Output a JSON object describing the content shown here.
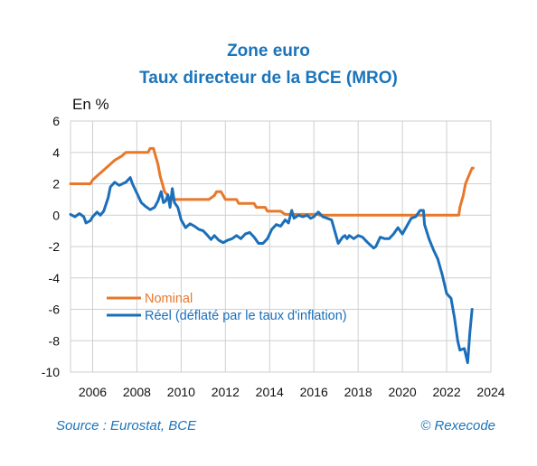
{
  "colors": {
    "title": "#1b74ba",
    "source": "#1b74ba",
    "nominal": "#e8782a",
    "reel": "#1b6fba",
    "grid": "#cfcfcf"
  },
  "header": {
    "line1": "Zone euro",
    "line2": "Taux directeur de la BCE (MRO)"
  },
  "footer": {
    "source": "Source : Eurostat, BCE",
    "copyright": "© Rexecode"
  },
  "chart_data": {
    "type": "line",
    "ylabel": "En %",
    "xlim": [
      2005.0,
      2024.0
    ],
    "ylim": [
      -10,
      6
    ],
    "xticks": [
      2006,
      2008,
      2010,
      2012,
      2014,
      2016,
      2018,
      2020,
      2022,
      2024
    ],
    "yticks": [
      6,
      4,
      2,
      0,
      -2,
      -4,
      -6,
      -8,
      -10
    ],
    "grid": true,
    "legend_position": "bottom-left",
    "series": [
      {
        "name": "Nominal",
        "color": "#e8782a",
        "points": [
          [
            2005.0,
            2.0
          ],
          [
            2005.9,
            2.0
          ],
          [
            2006.0,
            2.25
          ],
          [
            2006.2,
            2.5
          ],
          [
            2006.4,
            2.75
          ],
          [
            2006.6,
            3.0
          ],
          [
            2006.8,
            3.25
          ],
          [
            2007.0,
            3.5
          ],
          [
            2007.3,
            3.75
          ],
          [
            2007.5,
            4.0
          ],
          [
            2008.5,
            4.0
          ],
          [
            2008.6,
            4.25
          ],
          [
            2008.75,
            4.25
          ],
          [
            2008.85,
            3.75
          ],
          [
            2008.95,
            3.25
          ],
          [
            2009.05,
            2.5
          ],
          [
            2009.15,
            2.0
          ],
          [
            2009.25,
            1.5
          ],
          [
            2009.4,
            1.25
          ],
          [
            2009.5,
            1.0
          ],
          [
            2011.25,
            1.0
          ],
          [
            2011.5,
            1.25
          ],
          [
            2011.6,
            1.5
          ],
          [
            2011.8,
            1.5
          ],
          [
            2011.9,
            1.25
          ],
          [
            2012.0,
            1.0
          ],
          [
            2012.5,
            1.0
          ],
          [
            2012.6,
            0.75
          ],
          [
            2013.3,
            0.75
          ],
          [
            2013.4,
            0.5
          ],
          [
            2013.8,
            0.5
          ],
          [
            2013.9,
            0.25
          ],
          [
            2014.5,
            0.25
          ],
          [
            2014.6,
            0.15
          ],
          [
            2014.7,
            0.05
          ],
          [
            2016.2,
            0.05
          ],
          [
            2016.25,
            0.0
          ],
          [
            2022.55,
            0.0
          ],
          [
            2022.6,
            0.5
          ],
          [
            2022.75,
            1.25
          ],
          [
            2022.85,
            2.0
          ],
          [
            2023.0,
            2.5
          ],
          [
            2023.15,
            3.0
          ],
          [
            2023.2,
            3.0
          ]
        ]
      },
      {
        "name": "Réel (déflaté par le taux d'inflation)",
        "color": "#1b6fba",
        "points": [
          [
            2005.0,
            0.05
          ],
          [
            2005.2,
            -0.1
          ],
          [
            2005.4,
            0.1
          ],
          [
            2005.6,
            -0.1
          ],
          [
            2005.7,
            -0.5
          ],
          [
            2005.9,
            -0.35
          ],
          [
            2006.0,
            -0.1
          ],
          [
            2006.2,
            0.2
          ],
          [
            2006.35,
            0.0
          ],
          [
            2006.5,
            0.25
          ],
          [
            2006.7,
            1.1
          ],
          [
            2006.8,
            1.8
          ],
          [
            2007.0,
            2.1
          ],
          [
            2007.2,
            1.9
          ],
          [
            2007.5,
            2.1
          ],
          [
            2007.7,
            2.4
          ],
          [
            2007.8,
            2.0
          ],
          [
            2008.0,
            1.4
          ],
          [
            2008.2,
            0.8
          ],
          [
            2008.4,
            0.55
          ],
          [
            2008.6,
            0.35
          ],
          [
            2008.8,
            0.5
          ],
          [
            2008.95,
            0.9
          ],
          [
            2009.1,
            1.5
          ],
          [
            2009.2,
            0.8
          ],
          [
            2009.3,
            0.9
          ],
          [
            2009.4,
            1.3
          ],
          [
            2009.5,
            0.5
          ],
          [
            2009.6,
            1.7
          ],
          [
            2009.7,
            0.8
          ],
          [
            2009.85,
            0.5
          ],
          [
            2010.0,
            -0.3
          ],
          [
            2010.2,
            -0.8
          ],
          [
            2010.4,
            -0.55
          ],
          [
            2010.6,
            -0.7
          ],
          [
            2010.8,
            -0.9
          ],
          [
            2011.0,
            -1.0
          ],
          [
            2011.2,
            -1.3
          ],
          [
            2011.35,
            -1.55
          ],
          [
            2011.5,
            -1.3
          ],
          [
            2011.7,
            -1.6
          ],
          [
            2011.9,
            -1.75
          ],
          [
            2012.1,
            -1.6
          ],
          [
            2012.3,
            -1.5
          ],
          [
            2012.5,
            -1.3
          ],
          [
            2012.7,
            -1.5
          ],
          [
            2012.9,
            -1.2
          ],
          [
            2013.1,
            -1.1
          ],
          [
            2013.3,
            -1.4
          ],
          [
            2013.5,
            -1.8
          ],
          [
            2013.7,
            -1.8
          ],
          [
            2013.9,
            -1.5
          ],
          [
            2014.1,
            -0.9
          ],
          [
            2014.3,
            -0.6
          ],
          [
            2014.5,
            -0.7
          ],
          [
            2014.7,
            -0.3
          ],
          [
            2014.85,
            -0.5
          ],
          [
            2015.0,
            0.3
          ],
          [
            2015.1,
            -0.2
          ],
          [
            2015.3,
            0.0
          ],
          [
            2015.5,
            -0.1
          ],
          [
            2015.7,
            0.0
          ],
          [
            2015.85,
            -0.2
          ],
          [
            2016.0,
            -0.1
          ],
          [
            2016.2,
            0.2
          ],
          [
            2016.4,
            -0.1
          ],
          [
            2016.6,
            -0.2
          ],
          [
            2016.8,
            -0.3
          ],
          [
            2017.0,
            -1.3
          ],
          [
            2017.1,
            -1.8
          ],
          [
            2017.2,
            -1.6
          ],
          [
            2017.3,
            -1.4
          ],
          [
            2017.4,
            -1.3
          ],
          [
            2017.5,
            -1.5
          ],
          [
            2017.6,
            -1.3
          ],
          [
            2017.8,
            -1.5
          ],
          [
            2018.0,
            -1.3
          ],
          [
            2018.2,
            -1.4
          ],
          [
            2018.4,
            -1.7
          ],
          [
            2018.55,
            -1.9
          ],
          [
            2018.7,
            -2.1
          ],
          [
            2018.8,
            -2.0
          ],
          [
            2019.0,
            -1.4
          ],
          [
            2019.2,
            -1.5
          ],
          [
            2019.4,
            -1.5
          ],
          [
            2019.6,
            -1.2
          ],
          [
            2019.8,
            -0.8
          ],
          [
            2020.0,
            -1.2
          ],
          [
            2020.2,
            -0.7
          ],
          [
            2020.4,
            -0.2
          ],
          [
            2020.6,
            -0.1
          ],
          [
            2020.8,
            0.3
          ],
          [
            2020.95,
            0.3
          ],
          [
            2021.0,
            -0.6
          ],
          [
            2021.2,
            -1.5
          ],
          [
            2021.4,
            -2.2
          ],
          [
            2021.6,
            -2.8
          ],
          [
            2021.8,
            -3.8
          ],
          [
            2022.0,
            -5.0
          ],
          [
            2022.2,
            -5.3
          ],
          [
            2022.35,
            -6.5
          ],
          [
            2022.5,
            -8.0
          ],
          [
            2022.6,
            -8.6
          ],
          [
            2022.8,
            -8.5
          ],
          [
            2022.95,
            -9.4
          ],
          [
            2023.05,
            -7.5
          ],
          [
            2023.15,
            -6.0
          ]
        ]
      }
    ]
  }
}
